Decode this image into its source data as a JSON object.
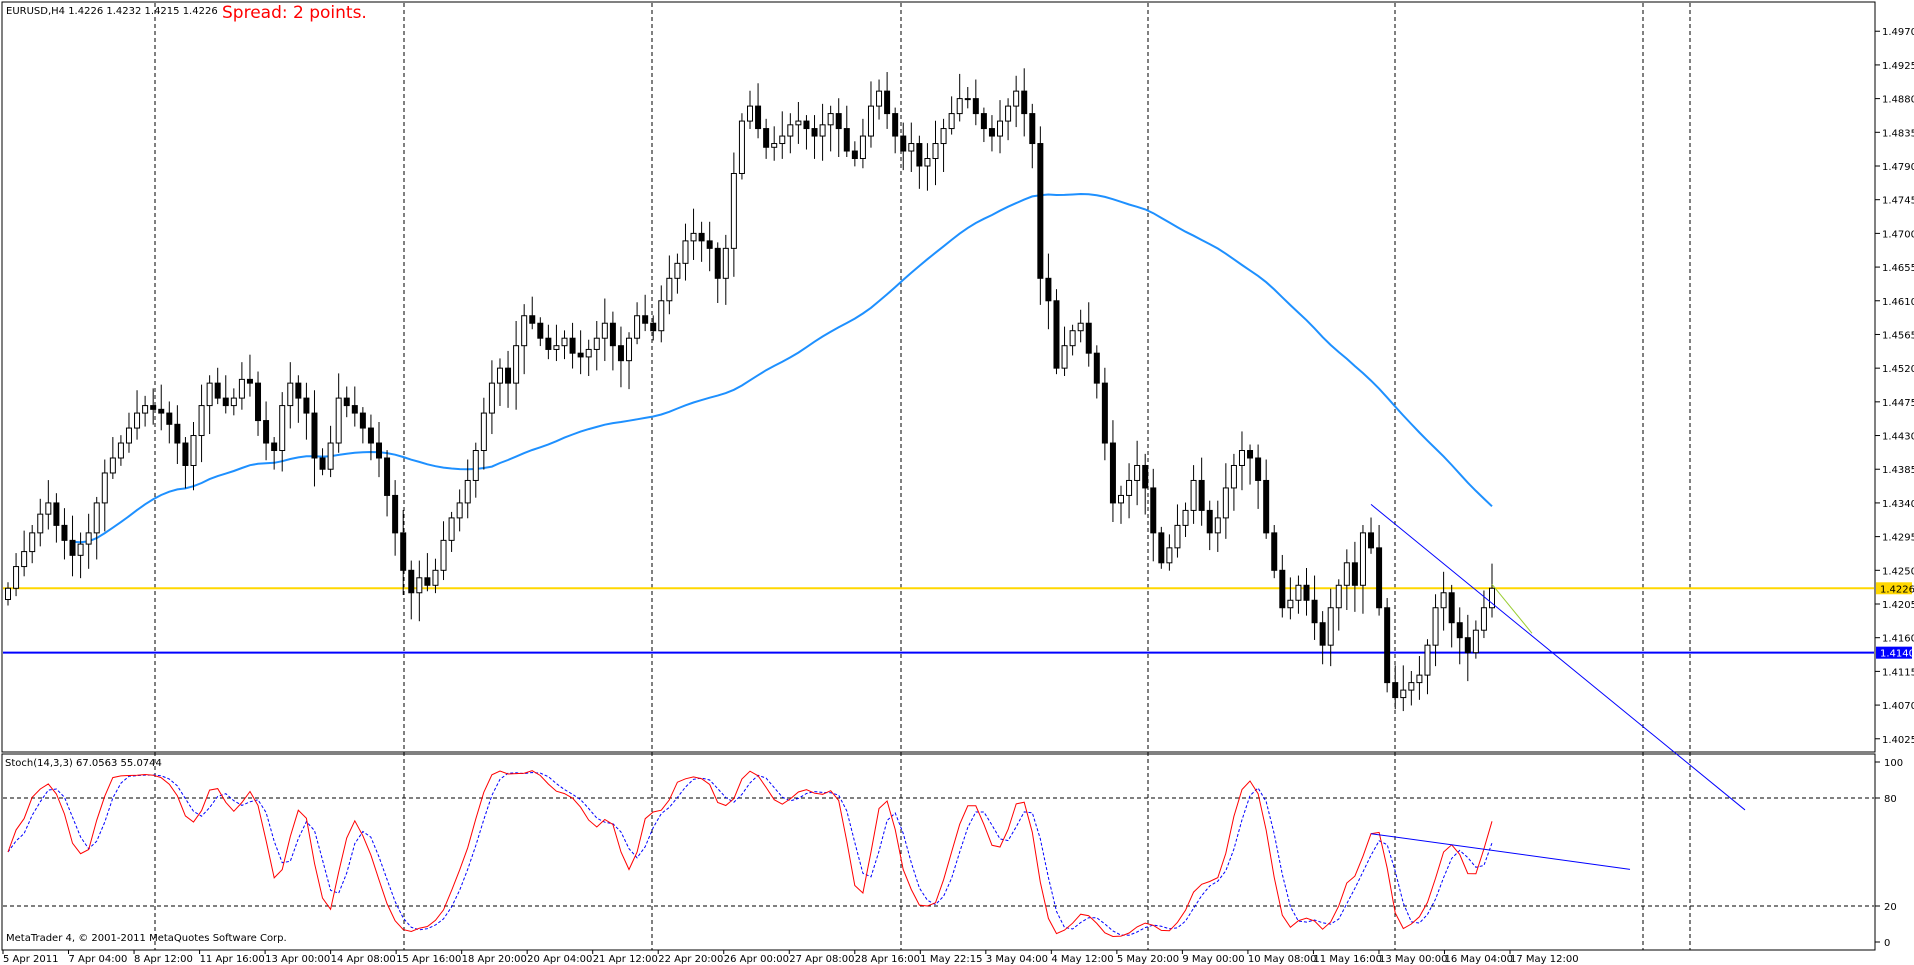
{
  "window": {
    "info": "EURUSD,H4  1.4226 1.4232 1.4215 1.4226"
  },
  "spread_text": "Spread: 2 points.",
  "stoch_info": "Stoch(14,3,3) 67.0563 55.0744",
  "copyright": "MetaTrader 4, © 2001-2011 MetaQuotes Software Corp.",
  "colors": {
    "bull_candle": "#ffffff",
    "bear_candle": "#000000",
    "ma_line": "#1e90ff",
    "yellow_line": "#ffd700",
    "blue_line": "#0000ff",
    "stoch_main": "#ff0000",
    "stoch_signal": "#0000ff"
  },
  "chart_data": [
    {
      "type": "candlestick",
      "symbol": "EURUSD",
      "timeframe": "H4",
      "ohlc_last": {
        "open": 1.4226,
        "high": 1.4232,
        "low": 1.4215,
        "close": 1.4226
      },
      "y_ticks": [
        "1.4970",
        "1.4925",
        "1.4880",
        "1.4835",
        "1.4790",
        "1.4745",
        "1.4700",
        "1.4655",
        "1.4610",
        "1.4565",
        "1.4520",
        "1.4475",
        "1.4430",
        "1.4385",
        "1.4340",
        "1.4295",
        "1.4250",
        "1.4205",
        "1.4160",
        "1.4115",
        "1.4070",
        "1.4025"
      ],
      "ylim": [
        1.401,
        1.4985
      ],
      "x_ticks": [
        "5 Apr 2011",
        "7 Apr 04:00",
        "8 Apr 12:00",
        "11 Apr 16:00",
        "13 Apr 00:00",
        "14 Apr 08:00",
        "15 Apr 16:00",
        "18 Apr 20:00",
        "20 Apr 04:00",
        "21 Apr 12:00",
        "22 Apr 20:00",
        "26 Apr 00:00",
        "27 Apr 08:00",
        "28 Apr 16:00",
        "1 May 22:15",
        "3 May 04:00",
        "4 May 12:00",
        "5 May 20:00",
        "9 May 00:00",
        "10 May 08:00",
        "11 May 16:00",
        "13 May 00:00",
        "16 May 04:00",
        "17 May 12:00"
      ],
      "closes": [
        1.4226,
        1.4255,
        1.4275,
        1.43,
        1.4325,
        1.434,
        1.431,
        1.429,
        1.427,
        1.4285,
        1.43,
        1.434,
        1.438,
        1.44,
        1.442,
        1.444,
        1.446,
        1.447,
        1.4465,
        1.446,
        1.4445,
        1.442,
        1.439,
        1.443,
        1.447,
        1.45,
        1.448,
        1.447,
        1.448,
        1.4505,
        1.45,
        1.445,
        1.442,
        1.441,
        1.447,
        1.45,
        1.448,
        1.446,
        1.44,
        1.4385,
        1.442,
        1.448,
        1.447,
        1.446,
        1.444,
        1.442,
        1.44,
        1.435,
        1.43,
        1.425,
        1.422,
        1.424,
        1.423,
        1.425,
        1.429,
        1.432,
        1.434,
        1.437,
        1.441,
        1.446,
        1.45,
        1.452,
        1.45,
        1.455,
        1.459,
        1.458,
        1.456,
        1.4545,
        1.455,
        1.456,
        1.454,
        1.4535,
        1.4545,
        1.456,
        1.458,
        1.455,
        1.453,
        1.456,
        1.459,
        1.458,
        1.457,
        1.461,
        1.464,
        1.466,
        1.469,
        1.47,
        1.469,
        1.468,
        1.464,
        1.468,
        1.478,
        1.485,
        1.487,
        1.484,
        1.4815,
        1.482,
        1.483,
        1.4845,
        1.485,
        1.484,
        1.483,
        1.4845,
        1.486,
        1.484,
        1.481,
        1.48,
        1.483,
        1.487,
        1.489,
        1.486,
        1.483,
        1.481,
        1.482,
        1.479,
        1.48,
        1.482,
        1.484,
        1.486,
        1.488,
        1.488,
        1.486,
        1.484,
        1.483,
        1.485,
        1.487,
        1.489,
        1.486,
        1.482,
        1.464,
        1.461,
        1.452,
        1.455,
        1.457,
        1.458,
        1.454,
        1.45,
        1.442,
        1.434,
        1.435,
        1.437,
        1.439,
        1.436,
        1.43,
        1.426,
        1.428,
        1.431,
        1.433,
        1.437,
        1.433,
        1.43,
        1.432,
        1.436,
        1.439,
        1.441,
        1.44,
        1.437,
        1.43,
        1.425,
        1.42,
        1.421,
        1.423,
        1.421,
        1.418,
        1.415,
        1.42,
        1.423,
        1.426,
        1.423,
        1.43,
        1.428,
        1.42,
        1.41,
        1.408,
        1.409,
        1.41,
        1.411,
        1.415,
        1.42,
        1.422,
        1.418,
        1.416,
        1.414,
        1.417,
        1.42,
        1.4226
      ]
    },
    {
      "type": "line",
      "name": "Stoch(14,3,3)",
      "y_ticks": [
        "100",
        "80",
        "20",
        "0"
      ],
      "ylim": [
        0,
        100
      ],
      "main_last": 67.0563,
      "signal_last": 55.0744
    }
  ],
  "price_labels": {
    "yellow": "1.4226",
    "blue": "1.4140"
  }
}
